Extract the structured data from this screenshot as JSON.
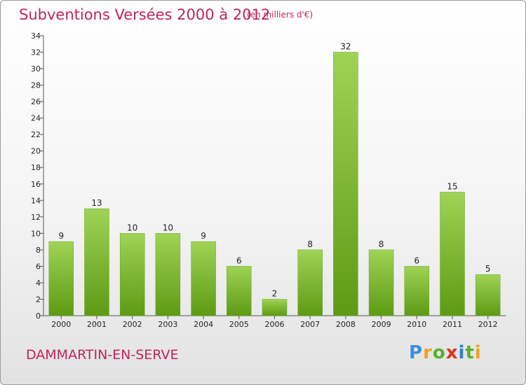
{
  "header": {
    "title": "Subventions Versées 2000 à 2012",
    "subtitle": "(en milliers d'€)"
  },
  "footer": {
    "commune": "DAMMARTIN-EN-SERVE",
    "logo_letters": [
      {
        "char": "P",
        "color": "#3a8fd9"
      },
      {
        "char": "r",
        "color": "#f0a21e"
      },
      {
        "char": "o",
        "color": "#58b030"
      },
      {
        "char": "x",
        "color": "#e0321e"
      },
      {
        "char": "i",
        "color": "#2f7fd0"
      },
      {
        "char": "t",
        "color": "#58b030"
      },
      {
        "char": "i",
        "color": "#f0a21e"
      }
    ]
  },
  "colors": {
    "title": "#c0245c",
    "bar_light": "#9fd355",
    "bar_dark": "#5e9a14"
  },
  "chart_data": {
    "type": "bar",
    "categories": [
      "2000",
      "2001",
      "2002",
      "2003",
      "2004",
      "2005",
      "2006",
      "2007",
      "2008",
      "2009",
      "2010",
      "2011",
      "2012"
    ],
    "values": [
      9,
      13,
      10,
      10,
      9,
      6,
      2,
      8,
      32,
      8,
      6,
      15,
      5
    ],
    "ylim": [
      0,
      34
    ],
    "yticks": [
      0,
      2,
      4,
      6,
      8,
      10,
      12,
      14,
      16,
      18,
      20,
      22,
      24,
      26,
      28,
      30,
      32,
      34
    ],
    "grid": false,
    "legend": "none"
  }
}
